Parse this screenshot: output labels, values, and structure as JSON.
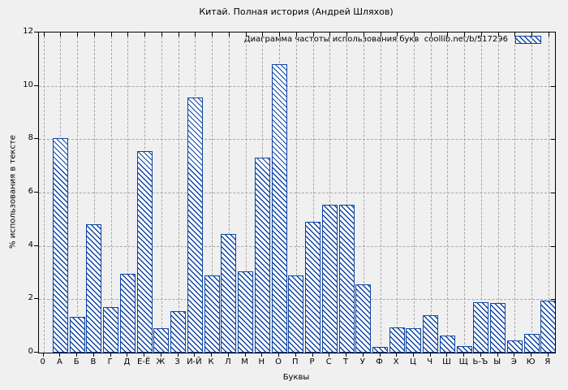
{
  "chart_data": {
    "type": "bar",
    "title": "Китай. Полная история (Андрей Шляхов)",
    "legend_label": "Диаграмма частоты использования букв  coollib.net/b/517296",
    "legend_position": "top-right",
    "xlabel": "Буквы",
    "ylabel": "% использования в тексте",
    "x_origin_label": "0",
    "categories": [
      "А",
      "Б",
      "В",
      "Г",
      "Д",
      "Е-Ё",
      "Ж",
      "З",
      "И-Й",
      "К",
      "Л",
      "М",
      "Н",
      "О",
      "П",
      "Р",
      "С",
      "Т",
      "У",
      "Ф",
      "Х",
      "Ц",
      "Ч",
      "Ш",
      "Щ",
      "Ь-Ъ",
      "Ы",
      "Э",
      "Ю",
      "Я"
    ],
    "values": [
      8.05,
      1.35,
      4.8,
      1.7,
      2.95,
      7.55,
      0.9,
      1.55,
      9.55,
      2.9,
      4.45,
      3.05,
      7.3,
      10.8,
      2.9,
      4.9,
      5.55,
      5.55,
      2.55,
      0.2,
      0.95,
      0.9,
      1.4,
      0.65,
      0.25,
      1.9,
      1.85,
      0.45,
      0.7,
      1.95
    ],
    "ylim": [
      0,
      12
    ],
    "yticks": [
      0,
      2,
      4,
      6,
      8,
      10,
      12
    ],
    "grid": true,
    "hatch": "\\",
    "colors": {
      "bar_line": "#0e45a3",
      "bar_fill": "#ffffff",
      "grid": "#a6a6a6",
      "axis": "#000000",
      "background": "#f0f0f0"
    }
  }
}
